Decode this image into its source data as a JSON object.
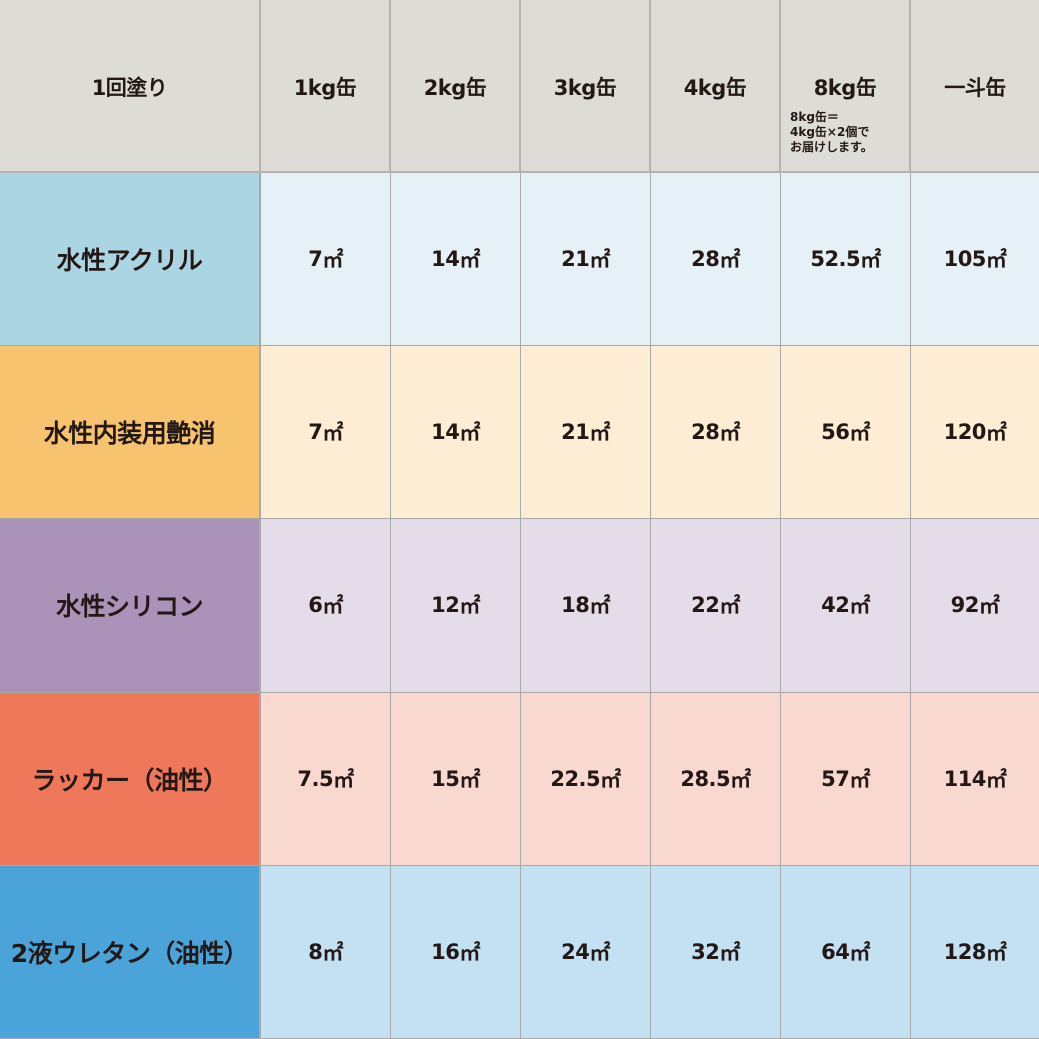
{
  "header": {
    "corner": "1回塗り",
    "columns": [
      "1kg缶",
      "2kg缶",
      "3kg缶",
      "4kg缶",
      "8kg缶",
      "一斗缶"
    ],
    "note_8kg": "8kg缶＝\n4kg缶×2個で\nお届けします。"
  },
  "unit": "㎡",
  "rows": [
    {
      "label": "水性アクリル",
      "label_color": "#acd5e4",
      "cell_color": "#e5f1f6",
      "values": [
        "7",
        "14",
        "21",
        "28",
        "52.5",
        "105"
      ]
    },
    {
      "label": "水性内装用艶消",
      "label_color": "#f8c36f",
      "cell_color": "#feedd5",
      "values": [
        "7",
        "14",
        "21",
        "28",
        "56",
        "120"
      ]
    },
    {
      "label": "水性シリコン",
      "label_color": "#ab92b8",
      "cell_color": "#e5dce9",
      "values": [
        "6",
        "12",
        "18",
        "22",
        "42",
        "92"
      ]
    },
    {
      "label": "ラッカー（油性）",
      "label_color": "#ee7859",
      "cell_color": "#f8d8cf",
      "values": [
        "7.5",
        "15",
        "22.5",
        "28.5",
        "57",
        "114"
      ]
    },
    {
      "label": "2液ウレタン（油性）",
      "label_color": "#4aa3d9",
      "cell_color": "#c3e1f2",
      "values": [
        "8",
        "16",
        "24",
        "32",
        "64",
        "128"
      ]
    }
  ]
}
